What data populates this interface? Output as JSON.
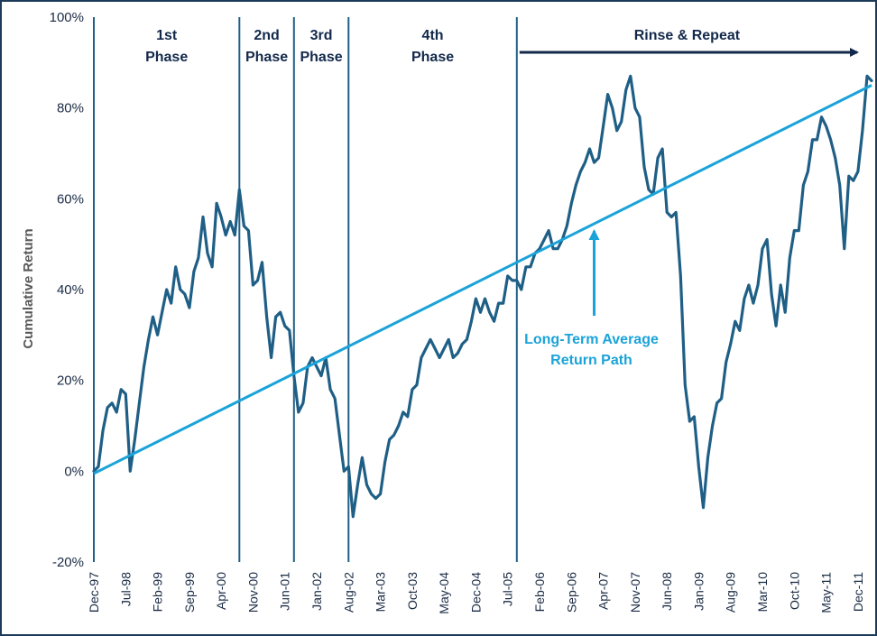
{
  "chart_data": {
    "type": "line",
    "title": "",
    "ylabel": "Cumulative Return",
    "xlabel": "",
    "ylim": [
      -20,
      100
    ],
    "ytick_values": [
      -20,
      0,
      20,
      40,
      60,
      80,
      100
    ],
    "ytick_labels": [
      "-20%",
      "0%",
      "20%",
      "40%",
      "60%",
      "80%",
      "100%"
    ],
    "x_start": "Dec-97",
    "x_end": "Mar-12",
    "xtick_labels": [
      "Dec-97",
      "Jul-98",
      "Feb-99",
      "Sep-99",
      "Apr-00",
      "Nov-00",
      "Jun-01",
      "Jan-02",
      "Aug-02",
      "Mar-03",
      "Oct-03",
      "May-04",
      "Dec-04",
      "Jul-05",
      "Feb-06",
      "Sep-06",
      "Apr-07",
      "Nov-07",
      "Jun-08",
      "Jan-09",
      "Aug-09",
      "Mar-10",
      "Oct-10",
      "May-11",
      "Dec-11"
    ],
    "xtick_index": [
      0,
      7,
      14,
      21,
      28,
      35,
      42,
      49,
      56,
      63,
      70,
      77,
      84,
      91,
      98,
      105,
      112,
      119,
      126,
      133,
      140,
      147,
      154,
      161,
      168
    ],
    "series": [
      {
        "name": "Cumulative Return",
        "color": "#1f5f86",
        "values": [
          0,
          1,
          9,
          14,
          15,
          13,
          18,
          17,
          0,
          7,
          15,
          23,
          29,
          34,
          30,
          35,
          40,
          37,
          45,
          40,
          39,
          36,
          44,
          47,
          56,
          48,
          45,
          59,
          56,
          52,
          55,
          52,
          62,
          54,
          53,
          41,
          42,
          46,
          34,
          25,
          34,
          35,
          32,
          31,
          21,
          13,
          15,
          23,
          25,
          23,
          21,
          25,
          18,
          16,
          8,
          0,
          1,
          -10,
          -3,
          3,
          -3,
          -5,
          -6,
          -5,
          2,
          7,
          8,
          10,
          13,
          12,
          18,
          19,
          25,
          27,
          29,
          27,
          25,
          27,
          29,
          25,
          26,
          28,
          29,
          33,
          38,
          35,
          38,
          35,
          33,
          37,
          37,
          43,
          42,
          42,
          40,
          45,
          45,
          48,
          49,
          51,
          53,
          49,
          49,
          51,
          54,
          59,
          63,
          66,
          68,
          71,
          68,
          69,
          76,
          83,
          80,
          75,
          77,
          84,
          87,
          80,
          78,
          67,
          62,
          61,
          69,
          71,
          57,
          56,
          57,
          43,
          19,
          11,
          12,
          1,
          -8,
          3,
          10,
          15,
          16,
          24,
          28,
          33,
          31,
          38,
          41,
          37,
          41,
          49,
          51,
          39,
          32,
          41,
          35,
          47,
          53,
          53,
          63,
          66,
          73,
          73,
          78,
          76,
          73,
          69,
          63,
          49,
          65,
          64,
          66,
          75,
          87,
          86
        ]
      },
      {
        "name": "Long-Term Average Return Path",
        "color": "#1aa3d9",
        "type": "trend",
        "start_value": -0.5,
        "end_value": 85
      }
    ],
    "phases": [
      {
        "label_line1": "1st",
        "label_line2": "Phase",
        "start_index": 0,
        "end_index": 32
      },
      {
        "label_line1": "2nd",
        "label_line2": "Phase",
        "start_index": 32,
        "end_index": 44
      },
      {
        "label_line1": "3rd",
        "label_line2": "Phase",
        "start_index": 44,
        "end_index": 56
      },
      {
        "label_line1": "4th",
        "label_line2": "Phase",
        "start_index": 56,
        "end_index": 93
      }
    ],
    "rinse_repeat": {
      "label": "Rinse & Repeat",
      "start_index": 93
    },
    "annotation": {
      "line1": "Long-Term Average",
      "line2": "Return Path",
      "target_index": 110
    },
    "colors": {
      "series": "#1f5f86",
      "trend": "#1aa3d9",
      "dividers": "#1f5f86",
      "phase_text": "#13294b",
      "arrow": "#13294b",
      "axis_text": "#1a2b45"
    }
  }
}
